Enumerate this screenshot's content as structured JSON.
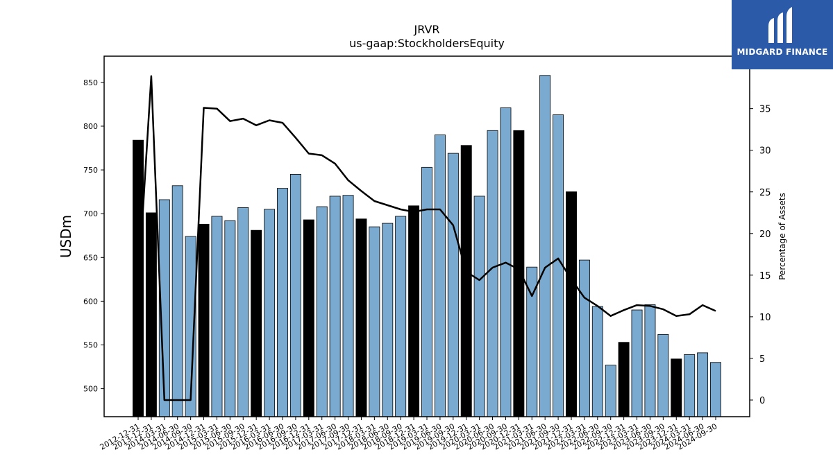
{
  "brand": {
    "name": "MIDGARD FINANCE",
    "bg_color": "#2b5aa8"
  },
  "chart_data": {
    "type": "bar",
    "title": "JRVR",
    "subtitle": "us-gaap:StockholdersEquity",
    "ylabel": "USDm",
    "y2label": "Percentage of Assets",
    "ylim": [
      468,
      880
    ],
    "y2lim": [
      -2,
      41.3
    ],
    "yticks": [
      500,
      550,
      600,
      650,
      700,
      750,
      800,
      850
    ],
    "y2ticks": [
      0,
      5,
      10,
      15,
      20,
      25,
      30,
      35
    ],
    "bar_color": "#7aaad0",
    "highlight_color": "#000000",
    "line_color": "#000000",
    "categories": [
      "2012-12-31",
      "2013-12-31",
      "2014-03-31",
      "2014-06-30",
      "2014-09-30",
      "2014-12-31",
      "2015-03-31",
      "2015-06-30",
      "2015-09-30",
      "2015-12-31",
      "2016-03-31",
      "2016-06-30",
      "2016-09-30",
      "2016-12-31",
      "2017-03-31",
      "2017-06-30",
      "2017-09-30",
      "2017-12-31",
      "2018-03-31",
      "2018-06-30",
      "2018-09-30",
      "2018-12-31",
      "2019-03-31",
      "2019-06-30",
      "2019-09-30",
      "2019-12-31",
      "2020-03-31",
      "2020-06-30",
      "2020-09-30",
      "2020-12-31",
      "2021-03-31",
      "2021-06-30",
      "2021-09-30",
      "2021-12-31",
      "2022-03-31",
      "2022-06-30",
      "2022-09-30",
      "2022-12-31",
      "2023-03-31",
      "2023-06-30",
      "2023-09-30",
      "2023-12-31",
      "2024-03-31",
      "2024-06-30",
      "2024-09-30"
    ],
    "series": [
      {
        "name": "USDm",
        "type": "bar",
        "values": [
          784,
          701,
          716,
          732,
          674,
          688,
          697,
          692,
          707,
          681,
          705,
          729,
          745,
          693,
          708,
          720,
          721,
          694,
          685,
          689,
          697,
          709,
          753,
          790,
          769,
          778,
          720,
          795,
          821,
          795,
          639,
          858,
          813,
          725,
          647,
          594,
          527,
          553,
          590,
          596,
          562,
          534,
          539,
          541,
          530
        ],
        "highlighted_categories": [
          "2012-12-31",
          "2013-12-31",
          "2014-12-31",
          "2015-12-31",
          "2016-12-31",
          "2017-12-31",
          "2018-12-31",
          "2019-12-31",
          "2020-12-31",
          "2021-12-31",
          "2022-12-31",
          "2023-12-31"
        ]
      },
      {
        "name": "Percentage of Assets",
        "type": "line",
        "axis": "right",
        "values": [
          13.5,
          38.9,
          0,
          0,
          0,
          35.1,
          35.0,
          33.5,
          33.8,
          33.0,
          33.6,
          33.3,
          31.5,
          29.6,
          29.4,
          28.4,
          26.4,
          25.1,
          23.9,
          23.4,
          22.9,
          22.6,
          22.9,
          22.9,
          21.0,
          15.4,
          14.4,
          15.9,
          16.5,
          15.7,
          12.5,
          15.9,
          17.0,
          14.5,
          12.3,
          11.3,
          10.1,
          10.8,
          11.4,
          11.3,
          10.9,
          10.1,
          10.3,
          11.4,
          10.7
        ]
      }
    ]
  }
}
